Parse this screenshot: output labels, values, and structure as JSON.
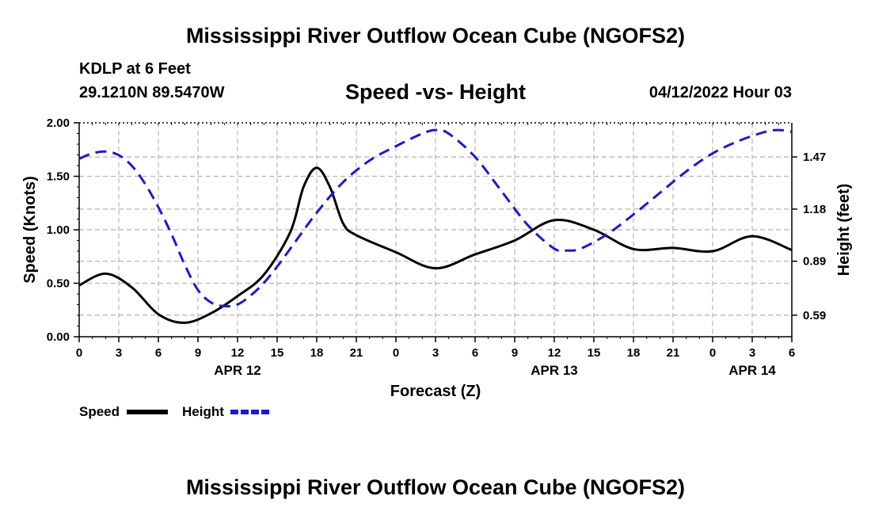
{
  "header": {
    "title": "Mississippi River Outflow Ocean Cube (NGOFS2)",
    "station_name": "KDLP at 6 Feet",
    "station_coords": "29.1210N  89.5470W",
    "subtitle": "Speed -vs- Height",
    "timestamp": "04/12/2022 Hour 03"
  },
  "footer": {
    "title": "Mississippi River Outflow Ocean Cube (NGOFS2)"
  },
  "colors": {
    "speed": "#000000",
    "height": "#1a1ad6",
    "grid": "#b4b4b4"
  },
  "chart_data": {
    "type": "line",
    "title": "Speed -vs- Height",
    "xlabel": "Forecast (Z)",
    "ylabel": "Speed (Knots)",
    "y2label": "Height (feet)",
    "x_unit": "forecast hours from 00Z Apr 12",
    "xlim": [
      0,
      54
    ],
    "ylim": [
      0,
      2.0
    ],
    "y2lim": [
      0.47,
      1.66
    ],
    "x_ticks": [
      0,
      3,
      6,
      9,
      12,
      15,
      18,
      21,
      24,
      27,
      30,
      33,
      36,
      39,
      42,
      45,
      48,
      51,
      54
    ],
    "x_tick_labels": [
      "0",
      "3",
      "6",
      "9",
      "12",
      "15",
      "18",
      "21",
      "0",
      "3",
      "6",
      "9",
      "12",
      "15",
      "18",
      "21",
      "0",
      "3",
      "6"
    ],
    "y_ticks": [
      0,
      0.5,
      1.0,
      1.5,
      2.0
    ],
    "y_tick_labels": [
      "0.00",
      "0.50",
      "1.00",
      "1.50",
      "2.00"
    ],
    "y2_ticks": [
      0.59,
      0.89,
      1.18,
      1.47
    ],
    "y2_tick_labels": [
      "0.59",
      "0.89",
      "1.18",
      "1.47"
    ],
    "date_labels": [
      {
        "x": 12,
        "label": "APR 12"
      },
      {
        "x": 36,
        "label": "APR 13"
      },
      {
        "x": 51,
        "label": "APR 14"
      }
    ],
    "legend": [
      {
        "name": "Speed",
        "style": "solid"
      },
      {
        "name": "Height",
        "style": "dashed"
      }
    ],
    "series": [
      {
        "name": "Speed",
        "axis": "left",
        "x": [
          0,
          2,
          4,
          6,
          8,
          10,
          12,
          14,
          16,
          17,
          18,
          19,
          20,
          21,
          24,
          27,
          30,
          33,
          36,
          39,
          42,
          45,
          48,
          51,
          54
        ],
        "values": [
          0.48,
          0.59,
          0.46,
          0.21,
          0.13,
          0.22,
          0.38,
          0.58,
          0.98,
          1.4,
          1.58,
          1.4,
          1.06,
          0.95,
          0.79,
          0.64,
          0.77,
          0.9,
          1.09,
          1.0,
          0.82,
          0.83,
          0.8,
          0.94,
          0.81
        ]
      },
      {
        "name": "Height",
        "axis": "right",
        "x": [
          0,
          1,
          2,
          3,
          4,
          5,
          6,
          7,
          8,
          9,
          10,
          11,
          12,
          13,
          14,
          15,
          16,
          18,
          20,
          22,
          24,
          26,
          27,
          28,
          30,
          32,
          34,
          36,
          37,
          38,
          40,
          42,
          44,
          46,
          48,
          50,
          52,
          53,
          54
        ],
        "values": [
          1.46,
          1.49,
          1.5,
          1.48,
          1.42,
          1.32,
          1.19,
          1.04,
          0.87,
          0.73,
          0.66,
          0.64,
          0.65,
          0.7,
          0.77,
          0.86,
          0.96,
          1.16,
          1.33,
          1.45,
          1.53,
          1.6,
          1.62,
          1.6,
          1.47,
          1.28,
          1.09,
          0.96,
          0.95,
          0.96,
          1.04,
          1.15,
          1.27,
          1.39,
          1.49,
          1.56,
          1.61,
          1.62,
          1.61
        ]
      }
    ]
  }
}
